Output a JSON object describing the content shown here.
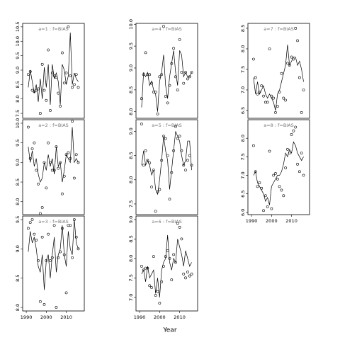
{
  "x_label": "Year",
  "chart_data": [
    {
      "type": "line",
      "title": "a=1  :  f=BIAS",
      "x": [
        1991,
        1992,
        1993,
        1994,
        1995,
        1996,
        1997,
        1998,
        1999,
        2000,
        2001,
        2002,
        2003,
        2004,
        2005,
        2006,
        2007,
        2008,
        2009,
        2010,
        2011,
        2012,
        2013,
        2014,
        2015,
        2016
      ],
      "series": [
        {
          "style": "points",
          "color": "#000000",
          "values": [
            8.85,
            8.95,
            8.3,
            8.25,
            8.3,
            8.35,
            7.5,
            9.2,
            8.3,
            7.95,
            9.7,
            7.6,
            8.9,
            8.8,
            8.75,
            8.2,
            7.75,
            9.6,
            8.55,
            8.9,
            10.5,
            8.8,
            8.4,
            8.5,
            8.85,
            8.4
          ]
        },
        {
          "style": "line",
          "color": "#000000",
          "values": [
            8.4,
            9.0,
            8.6,
            8.2,
            8.5,
            7.9,
            8.7,
            8.0,
            9.1,
            8.4,
            9.2,
            7.8,
            9.2,
            8.7,
            8.9,
            8.6,
            7.8,
            9.2,
            9.0,
            8.5,
            8.8,
            10.3,
            8.5,
            8.9,
            8.7,
            8.6
          ]
        }
      ],
      "xlim": [
        1988.2,
        2019
      ],
      "ylim": [
        7.33,
        10.62
      ],
      "yticks": [
        7.5,
        {
          "value": 8,
          "label": "8.0"
        },
        8.5,
        {
          "value": 9,
          "label": "9.0"
        },
        9.5,
        {
          "value": 10,
          "label": "10.0"
        },
        10.5
      ]
    },
    {
      "type": "line",
      "title": "a=2  :  f=BIAS",
      "x": [
        1991,
        1992,
        1993,
        1994,
        1995,
        1996,
        1997,
        1998,
        1999,
        2000,
        2001,
        2002,
        2003,
        2004,
        2005,
        2006,
        2007,
        2008,
        2009,
        2010,
        2011,
        2012,
        2013,
        2014,
        2015,
        2016
      ],
      "series": [
        {
          "style": "points",
          "color": "#000000",
          "values": [
            9.9,
            9.1,
            9.35,
            9.5,
            8.8,
            8.45,
            7.7,
            7.85,
            9.0,
            8.35,
            9.5,
            9.0,
            8.8,
            8.8,
            9.4,
            8.85,
            9.0,
            8.2,
            8.65,
            9.2,
            9.25,
            9.1,
            10.05,
            8.6,
            9.2,
            9.0
          ]
        },
        {
          "style": "line",
          "color": "#000000",
          "values": [
            9.4,
            9.0,
            9.3,
            8.9,
            9.1,
            8.7,
            8.5,
            8.6,
            9.0,
            8.8,
            9.2,
            8.9,
            9.1,
            8.7,
            9.4,
            8.9,
            9.0,
            8.5,
            8.8,
            9.2,
            9.1,
            9.0,
            9.9,
            9.0,
            9.1,
            9.0
          ]
        }
      ],
      "xlim": [
        1988.2,
        2019
      ],
      "ylim": [
        7.67,
        10.09
      ],
      "yticks": [
        {
          "value": 8,
          "label": "8.0"
        },
        8.5,
        {
          "value": 9,
          "label": "9.0"
        },
        9.5,
        {
          "value": 10,
          "label": "10.0"
        }
      ]
    },
    {
      "type": "line",
      "title": "a=3  :  f=BIAS",
      "x": [
        1991,
        1992,
        1993,
        1994,
        1995,
        1996,
        1997,
        1998,
        1999,
        2000,
        2001,
        2002,
        2003,
        2004,
        2005,
        2006,
        2007,
        2008,
        2009,
        2010,
        2011,
        2012,
        2013,
        2014,
        2015,
        2016
      ],
      "series": [
        {
          "style": "points",
          "color": "#000000",
          "values": [
            9.35,
            9.45,
            9.5,
            9.25,
            9.15,
            8.8,
            8.1,
            9.2,
            8.05,
            8.8,
            9.25,
            8.8,
            8.85,
            9.4,
            8.0,
            8.85,
            8.95,
            9.35,
            8.9,
            8.25,
            9.4,
            9.4,
            8.85,
            9.5,
            9.2,
            9.0
          ]
        },
        {
          "style": "line",
          "color": "#000000",
          "values": [
            8.95,
            9.3,
            9.1,
            9.2,
            9.0,
            8.7,
            8.6,
            8.9,
            8.3,
            8.8,
            8.9,
            8.5,
            8.9,
            9.2,
            8.6,
            8.9,
            9.0,
            9.4,
            8.9,
            8.7,
            9.3,
            9.0,
            8.9,
            9.5,
            9.1,
            9.0
          ]
        }
      ],
      "xlim": [
        1988.2,
        2019
      ],
      "ylim": [
        7.94,
        9.56
      ],
      "yticks": [
        {
          "value": 8,
          "label": "8.0"
        },
        8.5,
        {
          "value": 9,
          "label": "9.0"
        },
        9.5
      ],
      "xticks": [
        1990,
        2000,
        2010
      ]
    },
    {
      "type": "line",
      "title": "a=4  :  f=BIAS",
      "x": [
        1991,
        1992,
        1993,
        1994,
        1995,
        1996,
        1997,
        1998,
        1999,
        2000,
        2001,
        2002,
        2003,
        2004,
        2005,
        2006,
        2007,
        2008,
        2009,
        2010,
        2011,
        2012,
        2013,
        2014,
        2015,
        2016
      ],
      "series": [
        {
          "style": "points",
          "color": "#000000",
          "values": [
            8.3,
            8.85,
            9.35,
            8.85,
            8.85,
            8.65,
            8.45,
            8.45,
            7.95,
            8.8,
            8.85,
            9.95,
            8.35,
            8.2,
            8.6,
            9.1,
            9.45,
            8.8,
            8.5,
            9.65,
            8.9,
            8.65,
            8.9,
            8.75,
            8.8,
            8.9
          ]
        },
        {
          "style": "line",
          "color": "#000000",
          "values": [
            8.1,
            8.9,
            8.8,
            8.9,
            8.6,
            8.7,
            8.5,
            8.4,
            8.0,
            8.7,
            8.9,
            9.3,
            8.6,
            8.3,
            8.8,
            9.1,
            9.4,
            8.9,
            8.6,
            9.4,
            9.3,
            8.8,
            8.9,
            8.8,
            8.8,
            8.9
          ]
        }
      ],
      "xlim": [
        1988.2,
        2019
      ],
      "ylim": [
        7.85,
        10.02
      ],
      "yticks": [
        {
          "value": 8,
          "label": "8.0"
        },
        8.5,
        {
          "value": 9,
          "label": "9.0"
        },
        9.5,
        {
          "value": 10,
          "label": "10.0"
        }
      ]
    },
    {
      "type": "line",
      "title": "a=5  :  f=BIAS",
      "x": [
        1991,
        1992,
        1993,
        1994,
        1995,
        1996,
        1997,
        1998,
        1999,
        2000,
        2001,
        2002,
        2003,
        2004,
        2005,
        2006,
        2007,
        2008,
        2009,
        2010,
        2011,
        2012,
        2013,
        2014,
        2015,
        2016
      ],
      "series": [
        {
          "style": "points",
          "color": "#000000",
          "values": [
            9.15,
            8.3,
            8.6,
            8.4,
            8.35,
            7.85,
            8.2,
            7.35,
            7.75,
            7.8,
            8.4,
            8.9,
            8.85,
            8.5,
            7.6,
            8.15,
            8.6,
            9.1,
            8.85,
            8.9,
            8.6,
            8.3,
            8.2,
            8.4,
            8.5,
            8.3
          ]
        },
        {
          "style": "line",
          "color": "#000000",
          "values": [
            8.3,
            8.6,
            8.3,
            8.4,
            8.3,
            8.1,
            8.2,
            7.8,
            7.7,
            8.0,
            8.4,
            8.9,
            8.6,
            8.4,
            7.8,
            8.2,
            8.6,
            9.0,
            8.9,
            8.8,
            8.5,
            8.3,
            8.4,
            8.8,
            8.8,
            8.2
          ]
        }
      ],
      "xlim": [
        1988.2,
        2019
      ],
      "ylim": [
        7.28,
        9.24
      ],
      "yticks": [
        7.5,
        {
          "value": 8,
          "label": "8.0"
        },
        8.5,
        {
          "value": 9,
          "label": "9.0"
        }
      ]
    },
    {
      "type": "line",
      "title": "a=6  :  f=BIAS",
      "x": [
        1991,
        1992,
        1993,
        1994,
        1995,
        1996,
        1997,
        1998,
        1999,
        2000,
        2001,
        2002,
        2003,
        2004,
        2005,
        2006,
        2007,
        2008,
        2009,
        2010,
        2011,
        2012,
        2013,
        2014,
        2015,
        2016
      ],
      "series": [
        {
          "style": "points",
          "color": "#000000",
          "values": [
            7.8,
            7.7,
            7.75,
            7.75,
            7.3,
            7.25,
            8.05,
            7.05,
            7.15,
            6.85,
            7.4,
            7.8,
            8.05,
            8.2,
            8.0,
            7.45,
            8.1,
            7.9,
            8.9,
            8.8,
            8.5,
            7.6,
            7.5,
            7.65,
            7.55,
            7.6
          ]
        },
        {
          "style": "line",
          "color": "#000000",
          "values": [
            7.6,
            7.7,
            7.4,
            7.8,
            7.5,
            7.6,
            7.7,
            7.1,
            7.5,
            7.0,
            7.7,
            7.9,
            8.0,
            8.6,
            7.9,
            7.7,
            8.0,
            7.9,
            8.5,
            8.3,
            8.1,
            7.8,
            8.2,
            8.0,
            7.8,
            7.9
          ]
        }
      ],
      "xlim": [
        1988.2,
        2019
      ],
      "ylim": [
        6.65,
        9.09
      ],
      "yticks": [
        {
          "value": 7,
          "label": "7.0"
        },
        7.5,
        {
          "value": 8,
          "label": "8.0"
        },
        8.5,
        {
          "value": 9,
          "label": "9.0"
        }
      ],
      "xticks": [
        1990,
        2000,
        2010
      ]
    },
    {
      "type": "line",
      "title": "a=7  :  f=BIAS",
      "x": [
        1991,
        1992,
        1993,
        1994,
        1995,
        1996,
        1997,
        1998,
        1999,
        2000,
        2001,
        2002,
        2003,
        2004,
        2005,
        2006,
        2007,
        2008,
        2009,
        2010,
        2011,
        2012,
        2013,
        2014,
        2015,
        2016
      ],
      "series": [
        {
          "style": "points",
          "color": "#000000",
          "values": [
            7.75,
            7.3,
            6.9,
            6.95,
            7.1,
            6.85,
            6.7,
            6.7,
            8.0,
            6.85,
            6.8,
            6.45,
            6.6,
            6.95,
            7.4,
            6.8,
            6.75,
            7.65,
            7.6,
            7.8,
            7.75,
            8.5,
            8.2,
            7.3,
            6.45,
            7.0
          ]
        },
        {
          "style": "line",
          "color": "#000000",
          "values": [
            7.3,
            6.9,
            7.2,
            6.9,
            7.0,
            7.1,
            6.9,
            6.8,
            6.9,
            6.8,
            6.7,
            6.5,
            6.9,
            7.0,
            7.2,
            7.4,
            7.6,
            8.1,
            7.6,
            7.7,
            7.8,
            7.8,
            7.6,
            7.7,
            7.5,
            7.2
          ]
        }
      ],
      "xlim": [
        1988.2,
        2019
      ],
      "ylim": [
        6.31,
        8.62
      ],
      "yticks": [
        6.5,
        {
          "value": 7,
          "label": "7.0"
        },
        7.5,
        {
          "value": 8,
          "label": "8.0"
        },
        8.5
      ]
    },
    {
      "type": "line",
      "title": "a=8  :  f=BIAS",
      "x": [
        1991,
        1992,
        1993,
        1994,
        1995,
        1996,
        1997,
        1998,
        1999,
        2000,
        2001,
        2002,
        2003,
        2004,
        2005,
        2006,
        2007,
        2008,
        2009,
        2010,
        2011,
        2012,
        2013,
        2014,
        2015,
        2016
      ],
      "series": [
        {
          "style": "points",
          "color": "#000000",
          "values": [
            7.8,
            7.1,
            6.7,
            6.8,
            6.65,
            6.05,
            6.45,
            6.15,
            7.65,
            6.1,
            7.0,
            7.05,
            6.9,
            6.7,
            6.6,
            6.45,
            7.2,
            7.7,
            7.6,
            8.1,
            8.2,
            8.3,
            7.3,
            7.1,
            7.6,
            7.0
          ]
        },
        {
          "style": "line",
          "color": "#000000",
          "values": [
            7.0,
            7.1,
            6.8,
            6.7,
            6.6,
            6.5,
            6.3,
            6.4,
            6.2,
            6.7,
            6.8,
            6.9,
            7.0,
            7.0,
            7.1,
            7.3,
            7.6,
            7.5,
            7.7,
            7.6,
            7.9,
            7.8,
            7.6,
            7.5,
            7.4,
            7.5
          ]
        }
      ],
      "xlim": [
        1988.2,
        2019
      ],
      "ylim": [
        5.94,
        8.5
      ],
      "yticks": [
        {
          "value": 6,
          "label": "6.0"
        },
        6.5,
        {
          "value": 7,
          "label": "7.0"
        },
        7.5,
        {
          "value": 8,
          "label": "8.0"
        }
      ],
      "xticks": [
        1990,
        2000,
        2010
      ]
    }
  ]
}
